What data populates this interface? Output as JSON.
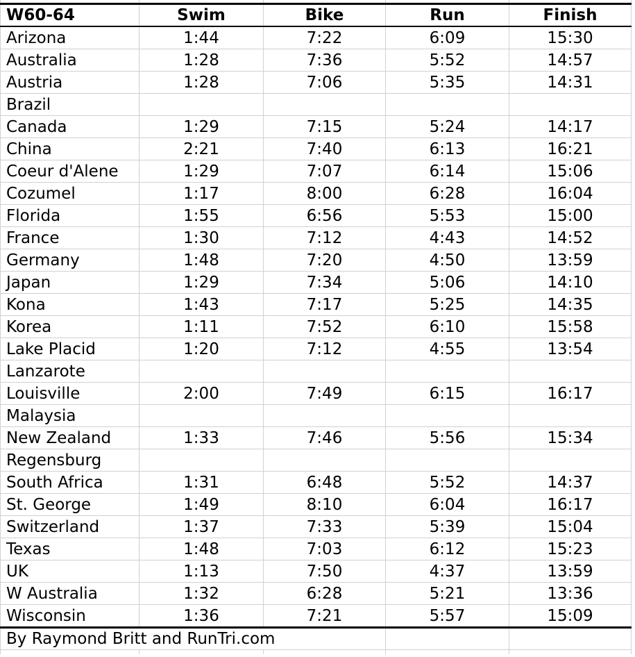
{
  "colors": {
    "background": "#ffffff",
    "text": "#000000",
    "gridline": "#d0d0d0",
    "heavy_border": "#000000"
  },
  "chart_data": {
    "type": "table",
    "title": "W60-64",
    "columns": [
      "W60-64",
      "Swim",
      "Bike",
      "Run",
      "Finish"
    ],
    "rows": [
      [
        "Arizona",
        "1:44",
        "7:22",
        "6:09",
        "15:30"
      ],
      [
        "Australia",
        "1:28",
        "7:36",
        "5:52",
        "14:57"
      ],
      [
        "Austria",
        "1:28",
        "7:06",
        "5:35",
        "14:31"
      ],
      [
        "Brazil",
        "",
        "",
        "",
        ""
      ],
      [
        "Canada",
        "1:29",
        "7:15",
        "5:24",
        "14:17"
      ],
      [
        "China",
        "2:21",
        "7:40",
        "6:13",
        "16:21"
      ],
      [
        "Coeur d'Alene",
        "1:29",
        "7:07",
        "6:14",
        "15:06"
      ],
      [
        "Cozumel",
        "1:17",
        "8:00",
        "6:28",
        "16:04"
      ],
      [
        "Florida",
        "1:55",
        "6:56",
        "5:53",
        "15:00"
      ],
      [
        "France",
        "1:30",
        "7:12",
        "4:43",
        "14:52"
      ],
      [
        "Germany",
        "1:48",
        "7:20",
        "4:50",
        "13:59"
      ],
      [
        "Japan",
        "1:29",
        "7:34",
        "5:06",
        "14:10"
      ],
      [
        "Kona",
        "1:43",
        "7:17",
        "5:25",
        "14:35"
      ],
      [
        "Korea",
        "1:11",
        "7:52",
        "6:10",
        "15:58"
      ],
      [
        "Lake Placid",
        "1:20",
        "7:12",
        "4:55",
        "13:54"
      ],
      [
        "Lanzarote",
        "",
        "",
        "",
        ""
      ],
      [
        "Louisville",
        "2:00",
        "7:49",
        "6:15",
        "16:17"
      ],
      [
        "Malaysia",
        "",
        "",
        "",
        ""
      ],
      [
        "New Zealand",
        "1:33",
        "7:46",
        "5:56",
        "15:34"
      ],
      [
        "Regensburg",
        "",
        "",
        "",
        ""
      ],
      [
        "South Africa",
        "1:31",
        "6:48",
        "5:52",
        "14:37"
      ],
      [
        "St. George",
        "1:49",
        "8:10",
        "6:04",
        "16:17"
      ],
      [
        "Switzerland",
        "1:37",
        "7:33",
        "5:39",
        "15:04"
      ],
      [
        "Texas",
        "1:48",
        "7:03",
        "6:12",
        "15:23"
      ],
      [
        "UK",
        "1:13",
        "7:50",
        "4:37",
        "13:59"
      ],
      [
        "W Australia",
        "1:32",
        "6:28",
        "5:21",
        "13:36"
      ],
      [
        "Wisconsin",
        "1:36",
        "7:21",
        "5:57",
        "15:09"
      ]
    ],
    "footer": "By Raymond Britt and RunTri.com",
    "layout": {
      "grid": "on",
      "header_style": "bold",
      "time_format": "h:mm"
    }
  }
}
